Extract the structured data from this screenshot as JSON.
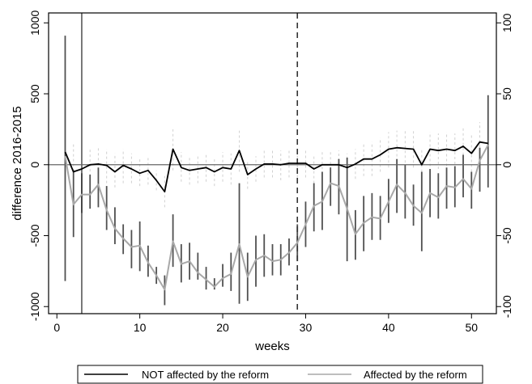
{
  "chart_data": {
    "type": "line",
    "xlabel": "weeks",
    "ylabel": "difference 2016-2015",
    "xlim": [
      -1,
      53
    ],
    "ylim_left": [
      -1050,
      1070
    ],
    "ylim_right": [
      -105,
      107
    ],
    "xticks": [
      0,
      10,
      20,
      30,
      40,
      50
    ],
    "yticks_left": [
      -1000,
      -500,
      0,
      500,
      1000
    ],
    "yticks_right": [
      -100,
      -50,
      0,
      50,
      100
    ],
    "grid": false,
    "legend_position": "bottom",
    "reference_lines": [
      {
        "x": 3,
        "style": "solid"
      },
      {
        "x": 29,
        "style": "dashed"
      },
      {
        "y": 0,
        "style": "solid"
      }
    ],
    "series": [
      {
        "name": "NOT affected by the reform",
        "axis": "right",
        "color": "#000000",
        "x": [
          1,
          2,
          3,
          4,
          5,
          6,
          7,
          8,
          9,
          10,
          11,
          12,
          13,
          14,
          15,
          16,
          17,
          18,
          19,
          20,
          21,
          22,
          23,
          24,
          25,
          26,
          27,
          28,
          29,
          30,
          31,
          32,
          33,
          34,
          35,
          36,
          37,
          38,
          39,
          40,
          41,
          42,
          43,
          44,
          45,
          46,
          47,
          48,
          49,
          50,
          51,
          52
        ],
        "values": [
          9,
          -5,
          -3,
          0,
          0.5,
          -0.5,
          -5,
          -0.5,
          -3,
          -6,
          -4,
          -11,
          -19,
          11,
          -2,
          -4,
          -3,
          -2,
          -5,
          -2,
          -3,
          10,
          -7,
          -3,
          0.5,
          0.5,
          0,
          1,
          1,
          1,
          -3,
          0,
          0,
          0,
          -2,
          0.5,
          4,
          4,
          7,
          11,
          12,
          11.5,
          11,
          0,
          11,
          10,
          11,
          10,
          13,
          8,
          16,
          15
        ],
        "ci_low": [
          -12,
          -25,
          -18,
          -15,
          -14,
          -13,
          -16,
          -13,
          -13,
          -15,
          -14,
          -18,
          -30,
          -4,
          -12,
          -14,
          -13,
          -12,
          -15,
          -12,
          -14,
          -5,
          -17,
          -12,
          -9,
          -9,
          -11,
          -9,
          -9,
          -9,
          -13,
          -10,
          -10,
          -11,
          -13,
          -10,
          -8,
          -8,
          -5,
          -2,
          -1,
          -2,
          -2,
          -12,
          -1,
          -3,
          -1,
          -3,
          0,
          -5,
          2,
          0
        ],
        "ci_high": [
          25,
          15,
          12,
          12,
          12,
          11,
          8,
          11,
          8,
          4,
          6,
          -4,
          -8,
          25,
          9,
          6,
          7,
          8,
          5,
          9,
          8,
          24,
          3,
          6,
          10,
          10,
          10,
          11,
          11,
          11,
          7,
          10,
          10,
          10,
          8,
          11,
          15,
          16,
          19,
          23,
          24,
          24,
          24,
          12,
          23,
          22,
          23,
          22,
          26,
          21,
          30,
          30
        ]
      },
      {
        "name": "Affected by the reform",
        "axis": "left",
        "color": "#a8a8a8",
        "x": [
          1,
          2,
          3,
          4,
          5,
          6,
          7,
          8,
          9,
          10,
          11,
          12,
          13,
          14,
          15,
          16,
          17,
          18,
          19,
          20,
          21,
          22,
          23,
          24,
          25,
          26,
          27,
          28,
          29,
          30,
          31,
          32,
          33,
          34,
          35,
          36,
          37,
          38,
          39,
          40,
          41,
          42,
          43,
          44,
          45,
          46,
          47,
          48,
          49,
          50,
          51,
          52
        ],
        "values": [
          60,
          -280,
          -210,
          -210,
          -140,
          -320,
          -450,
          -520,
          -580,
          -570,
          -690,
          -780,
          -880,
          -540,
          -700,
          -680,
          -760,
          -810,
          -860,
          -800,
          -770,
          -560,
          -790,
          -670,
          -640,
          -680,
          -670,
          -620,
          -550,
          -420,
          -290,
          -260,
          -130,
          -150,
          -310,
          -490,
          -410,
          -370,
          -380,
          -260,
          -140,
          -200,
          -290,
          -340,
          -200,
          -230,
          -150,
          -160,
          -100,
          -170,
          30,
          140
        ],
        "ci_low": [
          -820,
          -510,
          -340,
          -310,
          -300,
          -460,
          -560,
          -630,
          -730,
          -750,
          -790,
          -840,
          -990,
          -720,
          -830,
          -810,
          -810,
          -880,
          -880,
          -860,
          -890,
          -980,
          -960,
          -860,
          -790,
          -780,
          -780,
          -710,
          -680,
          -580,
          -470,
          -460,
          -290,
          -350,
          -680,
          -670,
          -610,
          -530,
          -530,
          -410,
          -340,
          -380,
          -430,
          -610,
          -370,
          -380,
          -310,
          -300,
          -230,
          -310,
          -190,
          -160
        ],
        "ci_high": [
          910,
          -40,
          -60,
          -70,
          -20,
          -150,
          -300,
          -420,
          -460,
          -400,
          -570,
          -720,
          -780,
          -350,
          -560,
          -550,
          -620,
          -720,
          -800,
          -700,
          -620,
          -130,
          -620,
          -500,
          -490,
          -560,
          -560,
          -520,
          -420,
          -260,
          -130,
          -50,
          -20,
          40,
          50,
          -320,
          -220,
          -200,
          -220,
          -100,
          40,
          0,
          -140,
          -50,
          -30,
          -60,
          -20,
          -10,
          70,
          -50,
          120,
          490
        ]
      }
    ]
  }
}
